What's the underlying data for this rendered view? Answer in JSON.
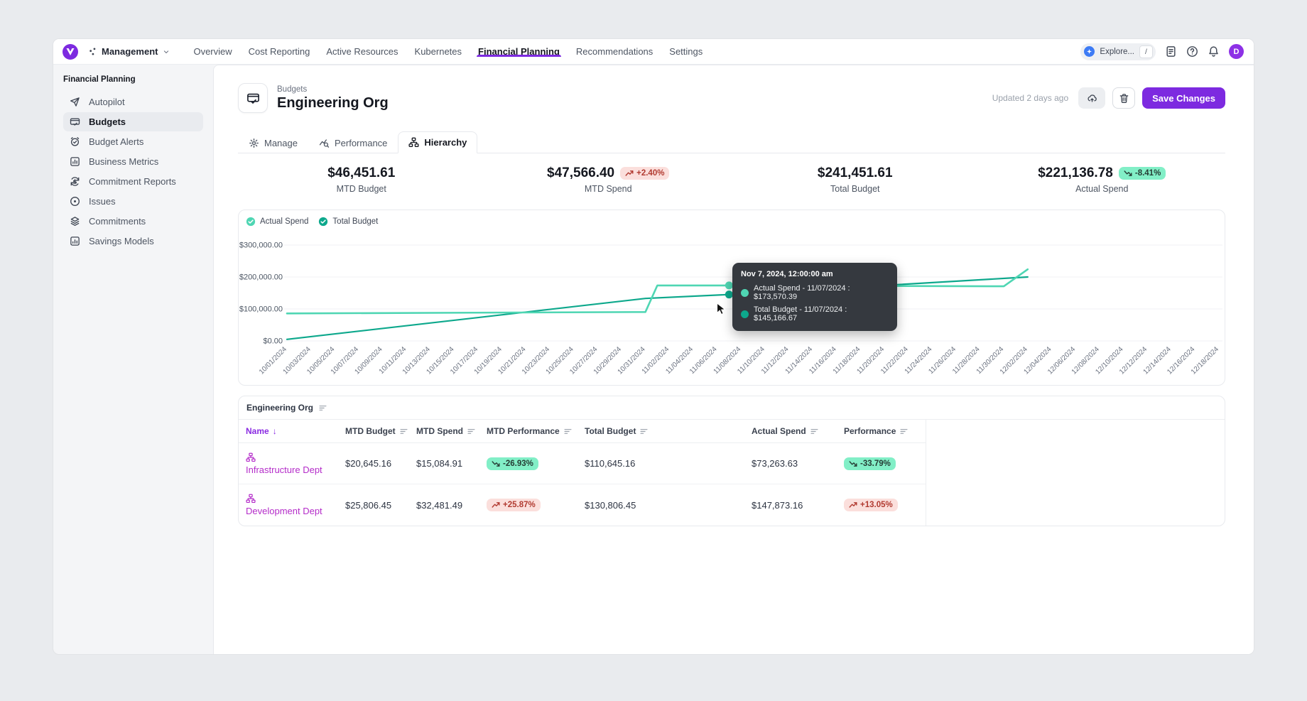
{
  "nav": {
    "workspace": {
      "label": "Management"
    },
    "items": [
      {
        "label": "Overview",
        "active": false
      },
      {
        "label": "Cost Reporting",
        "active": false
      },
      {
        "label": "Active Resources",
        "active": false
      },
      {
        "label": "Kubernetes",
        "active": false
      },
      {
        "label": "Financial Planning",
        "active": true
      },
      {
        "label": "Recommendations",
        "active": false
      },
      {
        "label": "Settings",
        "active": false
      }
    ],
    "explore": {
      "label": "Explore...",
      "shortcut": "/"
    },
    "avatar_initial": "D"
  },
  "sidebar": {
    "section": "Financial Planning",
    "items": [
      {
        "label": "Autopilot",
        "icon": "paper-plane",
        "active": false
      },
      {
        "label": "Budgets",
        "icon": "wallet",
        "active": true
      },
      {
        "label": "Budget Alerts",
        "icon": "alarm",
        "active": false
      },
      {
        "label": "Business Metrics",
        "icon": "metrics",
        "active": false
      },
      {
        "label": "Commitment Reports",
        "icon": "refresh-dollar",
        "active": false
      },
      {
        "label": "Issues",
        "icon": "issue",
        "active": false
      },
      {
        "label": "Commitments",
        "icon": "layers",
        "active": false
      },
      {
        "label": "Savings Models",
        "icon": "bar-box",
        "active": false
      }
    ]
  },
  "header": {
    "breadcrumb": "Budgets",
    "title": "Engineering Org",
    "updated": "Updated 2 days ago",
    "save_label": "Save Changes"
  },
  "tabs": [
    {
      "label": "Manage",
      "icon": "gear",
      "active": false
    },
    {
      "label": "Performance",
      "icon": "trend-search",
      "active": false
    },
    {
      "label": "Hierarchy",
      "icon": "hierarchy",
      "active": true
    }
  ],
  "stats": [
    {
      "value": "$46,451.61",
      "label": "MTD Budget",
      "badge": null
    },
    {
      "value": "$47,566.40",
      "label": "MTD Spend",
      "badge": {
        "text": "+2.40%",
        "direction": "up",
        "tone": "negative"
      }
    },
    {
      "value": "$241,451.61",
      "label": "Total Budget",
      "badge": null
    },
    {
      "value": "$221,136.78",
      "label": "Actual Spend",
      "badge": {
        "text": "-8.41%",
        "direction": "down",
        "tone": "positive"
      }
    }
  ],
  "chart_data": {
    "type": "line",
    "legend": [
      {
        "label": "Actual Spend",
        "color": "#4fd6b3"
      },
      {
        "label": "Total Budget",
        "color": "#0da88c"
      }
    ],
    "ylim": [
      0,
      300000
    ],
    "y_ticks": [
      {
        "label": "$0.00",
        "value": 0
      },
      {
        "label": "$100,000.00",
        "value": 100000
      },
      {
        "label": "$200,000.00",
        "value": 200000
      },
      {
        "label": "$300,000.00",
        "value": 300000
      }
    ],
    "x_days_per_tick": 2,
    "x_total_days": 78,
    "x_ticks": [
      "10/01/2024",
      "10/03/2024",
      "10/05/2024",
      "10/07/2024",
      "10/09/2024",
      "10/11/2024",
      "10/13/2024",
      "10/15/2024",
      "10/17/2024",
      "10/19/2024",
      "10/21/2024",
      "10/23/2024",
      "10/25/2024",
      "10/27/2024",
      "10/29/2024",
      "10/31/2024",
      "11/02/2024",
      "11/04/2024",
      "11/06/2024",
      "11/08/2024",
      "11/10/2024",
      "11/12/2024",
      "11/14/2024",
      "11/16/2024",
      "11/18/2024",
      "11/20/2024",
      "11/22/2024",
      "11/24/2024",
      "11/26/2024",
      "11/28/2024",
      "11/30/2024",
      "12/02/2024",
      "12/04/2024",
      "12/06/2024",
      "12/08/2024",
      "12/10/2024",
      "12/12/2024",
      "12/14/2024",
      "12/16/2024",
      "12/18/2024"
    ],
    "series": [
      {
        "name": "Actual Spend",
        "color": "#4fd6b3",
        "points": [
          [
            0,
            86000
          ],
          [
            30,
            90500
          ],
          [
            31,
            173500
          ],
          [
            37,
            173570.39
          ],
          [
            45,
            172500
          ],
          [
            60,
            170800
          ],
          [
            62,
            224000
          ]
        ]
      },
      {
        "name": "Total Budget",
        "color": "#0da88c",
        "points": [
          [
            0,
            5000
          ],
          [
            30,
            133000
          ],
          [
            37,
            145166.67
          ],
          [
            62,
            200000
          ]
        ]
      }
    ],
    "highlight": {
      "day": 37,
      "values": [
        173570.39,
        145166.67
      ]
    },
    "tooltip": {
      "title": "Nov 7, 2024, 12:00:00 am",
      "rows": [
        {
          "color": "#4fd6b3",
          "text": "Actual Spend - 11/07/2024 : $173,570.39"
        },
        {
          "color": "#0da88c",
          "text": "Total Budget - 11/07/2024 : $145,166.67"
        }
      ]
    }
  },
  "table": {
    "title": "Engineering Org",
    "columns": [
      "Name",
      "MTD Budget",
      "MTD Spend",
      "MTD Performance",
      "Total Budget",
      "Actual Spend",
      "Performance"
    ],
    "sorted_column": "Name",
    "rows": [
      {
        "name": "Infrastructure Dept",
        "cells": [
          {
            "text": "$20,645.16"
          },
          {
            "text": "$15,084.91"
          },
          {
            "badge": "-26.93%",
            "direction": "down",
            "tone": "positive"
          },
          {
            "text": "$110,645.16"
          },
          {
            "text": "$73,263.63"
          },
          {
            "badge": "-33.79%",
            "direction": "down",
            "tone": "positive"
          }
        ]
      },
      {
        "name": "Development Dept",
        "cells": [
          {
            "text": "$25,806.45"
          },
          {
            "text": "$32,481.49"
          },
          {
            "badge": "+25.87%",
            "direction": "up",
            "tone": "negative"
          },
          {
            "text": "$130,806.45"
          },
          {
            "text": "$147,873.16"
          },
          {
            "badge": "+13.05%",
            "direction": "up",
            "tone": "negative"
          }
        ]
      }
    ]
  }
}
